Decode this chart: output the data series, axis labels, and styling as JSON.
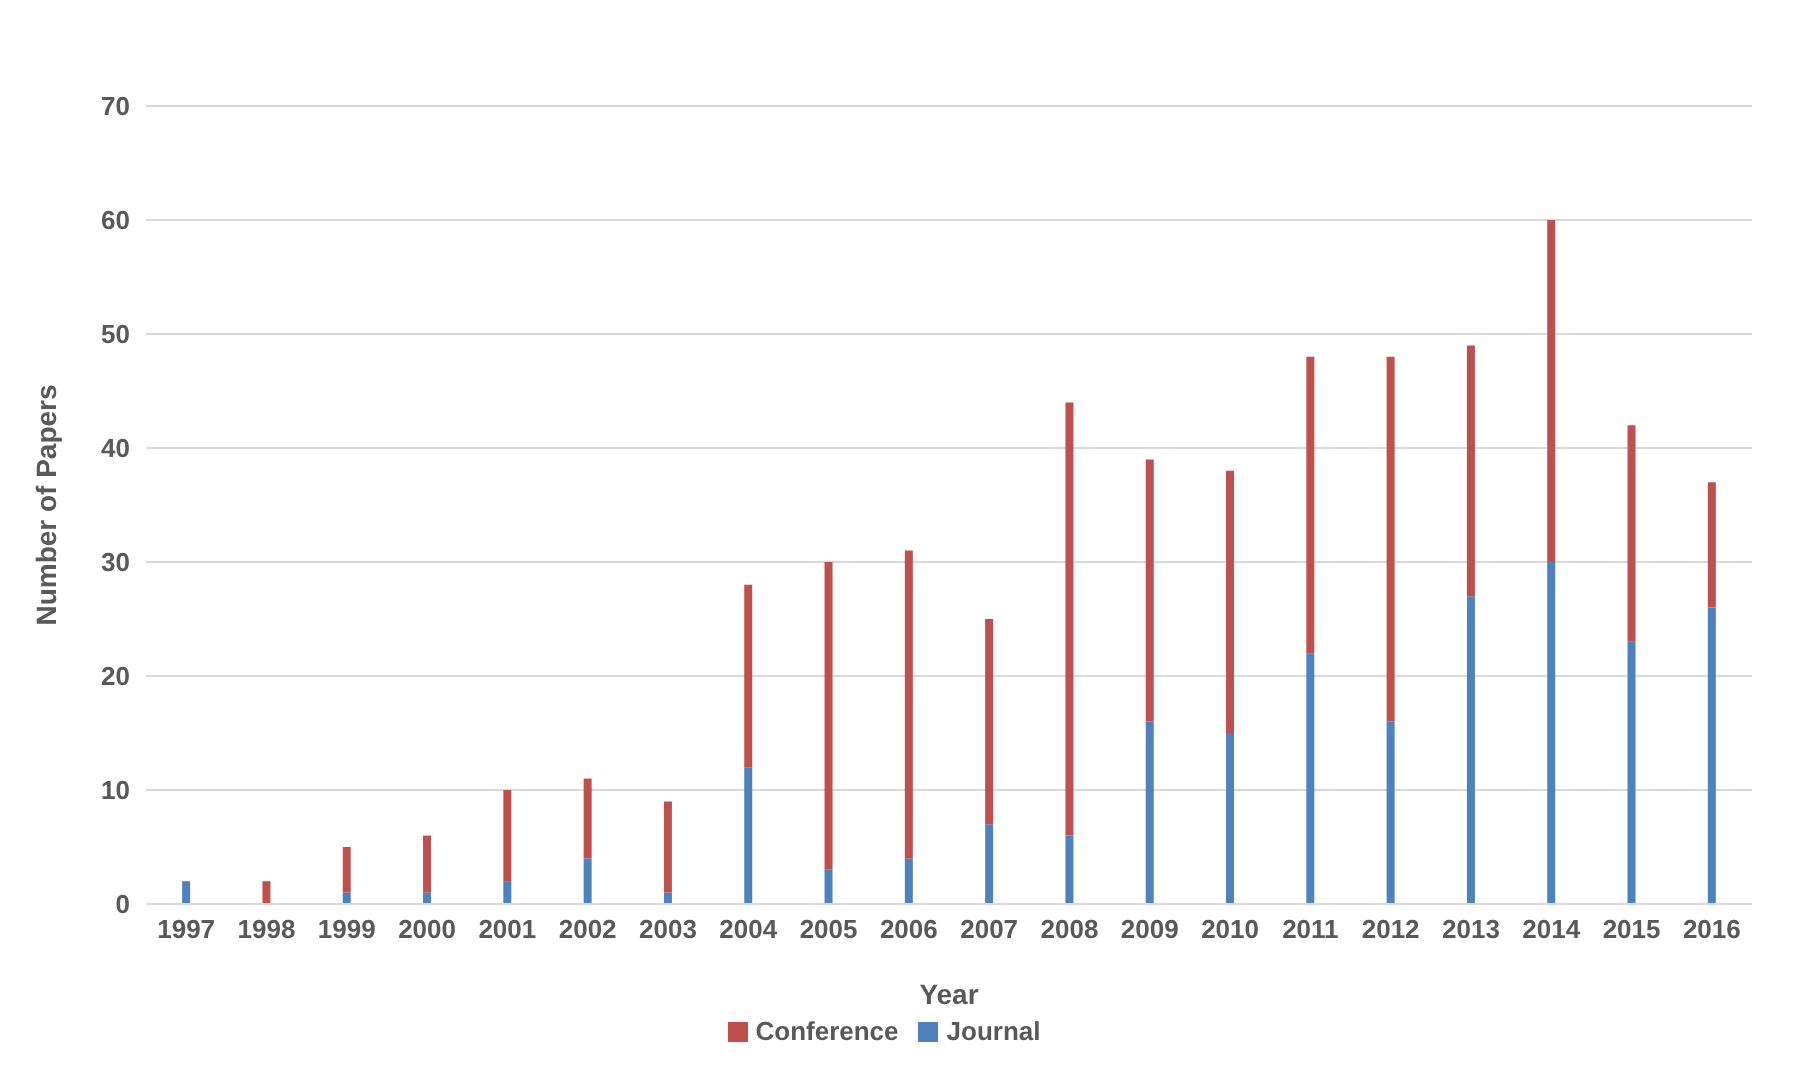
{
  "chart_data": {
    "type": "bar",
    "xlabel": "Year",
    "ylabel": "Number of Papers",
    "stacked": true,
    "grid": "y",
    "legend": "bottom",
    "categories": [
      "1997",
      "1998",
      "1999",
      "2000",
      "2001",
      "2002",
      "2003",
      "2004",
      "2005",
      "2006",
      "2007",
      "2008",
      "2009",
      "2010",
      "2011",
      "2012",
      "2013",
      "2014",
      "2015",
      "2016"
    ],
    "series": [
      {
        "name": "Journal",
        "color": "#4f81bd",
        "values": [
          2,
          0,
          1,
          1,
          2,
          4,
          1,
          12,
          3,
          4,
          7,
          6,
          16,
          15,
          22,
          16,
          27,
          30,
          23,
          26
        ]
      },
      {
        "name": "Conference",
        "color": "#c0504d",
        "values": [
          0,
          2,
          4,
          5,
          8,
          7,
          8,
          16,
          27,
          27,
          18,
          38,
          23,
          23,
          26,
          32,
          22,
          30,
          19,
          11
        ]
      }
    ],
    "ylim": [
      0,
      70
    ],
    "yticks": [
      0,
      10,
      20,
      30,
      40,
      50,
      60,
      70
    ]
  }
}
